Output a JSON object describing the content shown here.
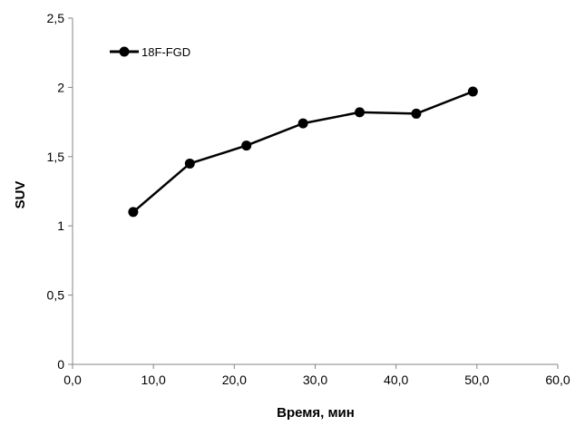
{
  "chart_data": {
    "type": "line",
    "xlabel": "Время, мин",
    "ylabel": "SUV",
    "xlim": [
      0,
      60
    ],
    "ylim": [
      0,
      2.5
    ],
    "x_ticks": [
      0,
      10,
      20,
      30,
      40,
      50,
      60
    ],
    "x_tick_labels": [
      "0,0",
      "10,0",
      "20,0",
      "30,0",
      "40,0",
      "50,0",
      "60,0"
    ],
    "y_ticks": [
      0,
      0.5,
      1,
      1.5,
      2,
      2.5
    ],
    "y_tick_labels": [
      "0",
      "0,5",
      "1",
      "1,5",
      "2",
      "2,5"
    ],
    "grid": false,
    "legend_position": "top-left",
    "series": [
      {
        "name": "18F-FGD",
        "color": "#000000",
        "marker": "circle",
        "x": [
          7.5,
          14.5,
          21.5,
          28.5,
          35.5,
          42.5,
          49.5
        ],
        "y": [
          1.1,
          1.45,
          1.58,
          1.74,
          1.82,
          1.81,
          1.97
        ]
      }
    ]
  }
}
